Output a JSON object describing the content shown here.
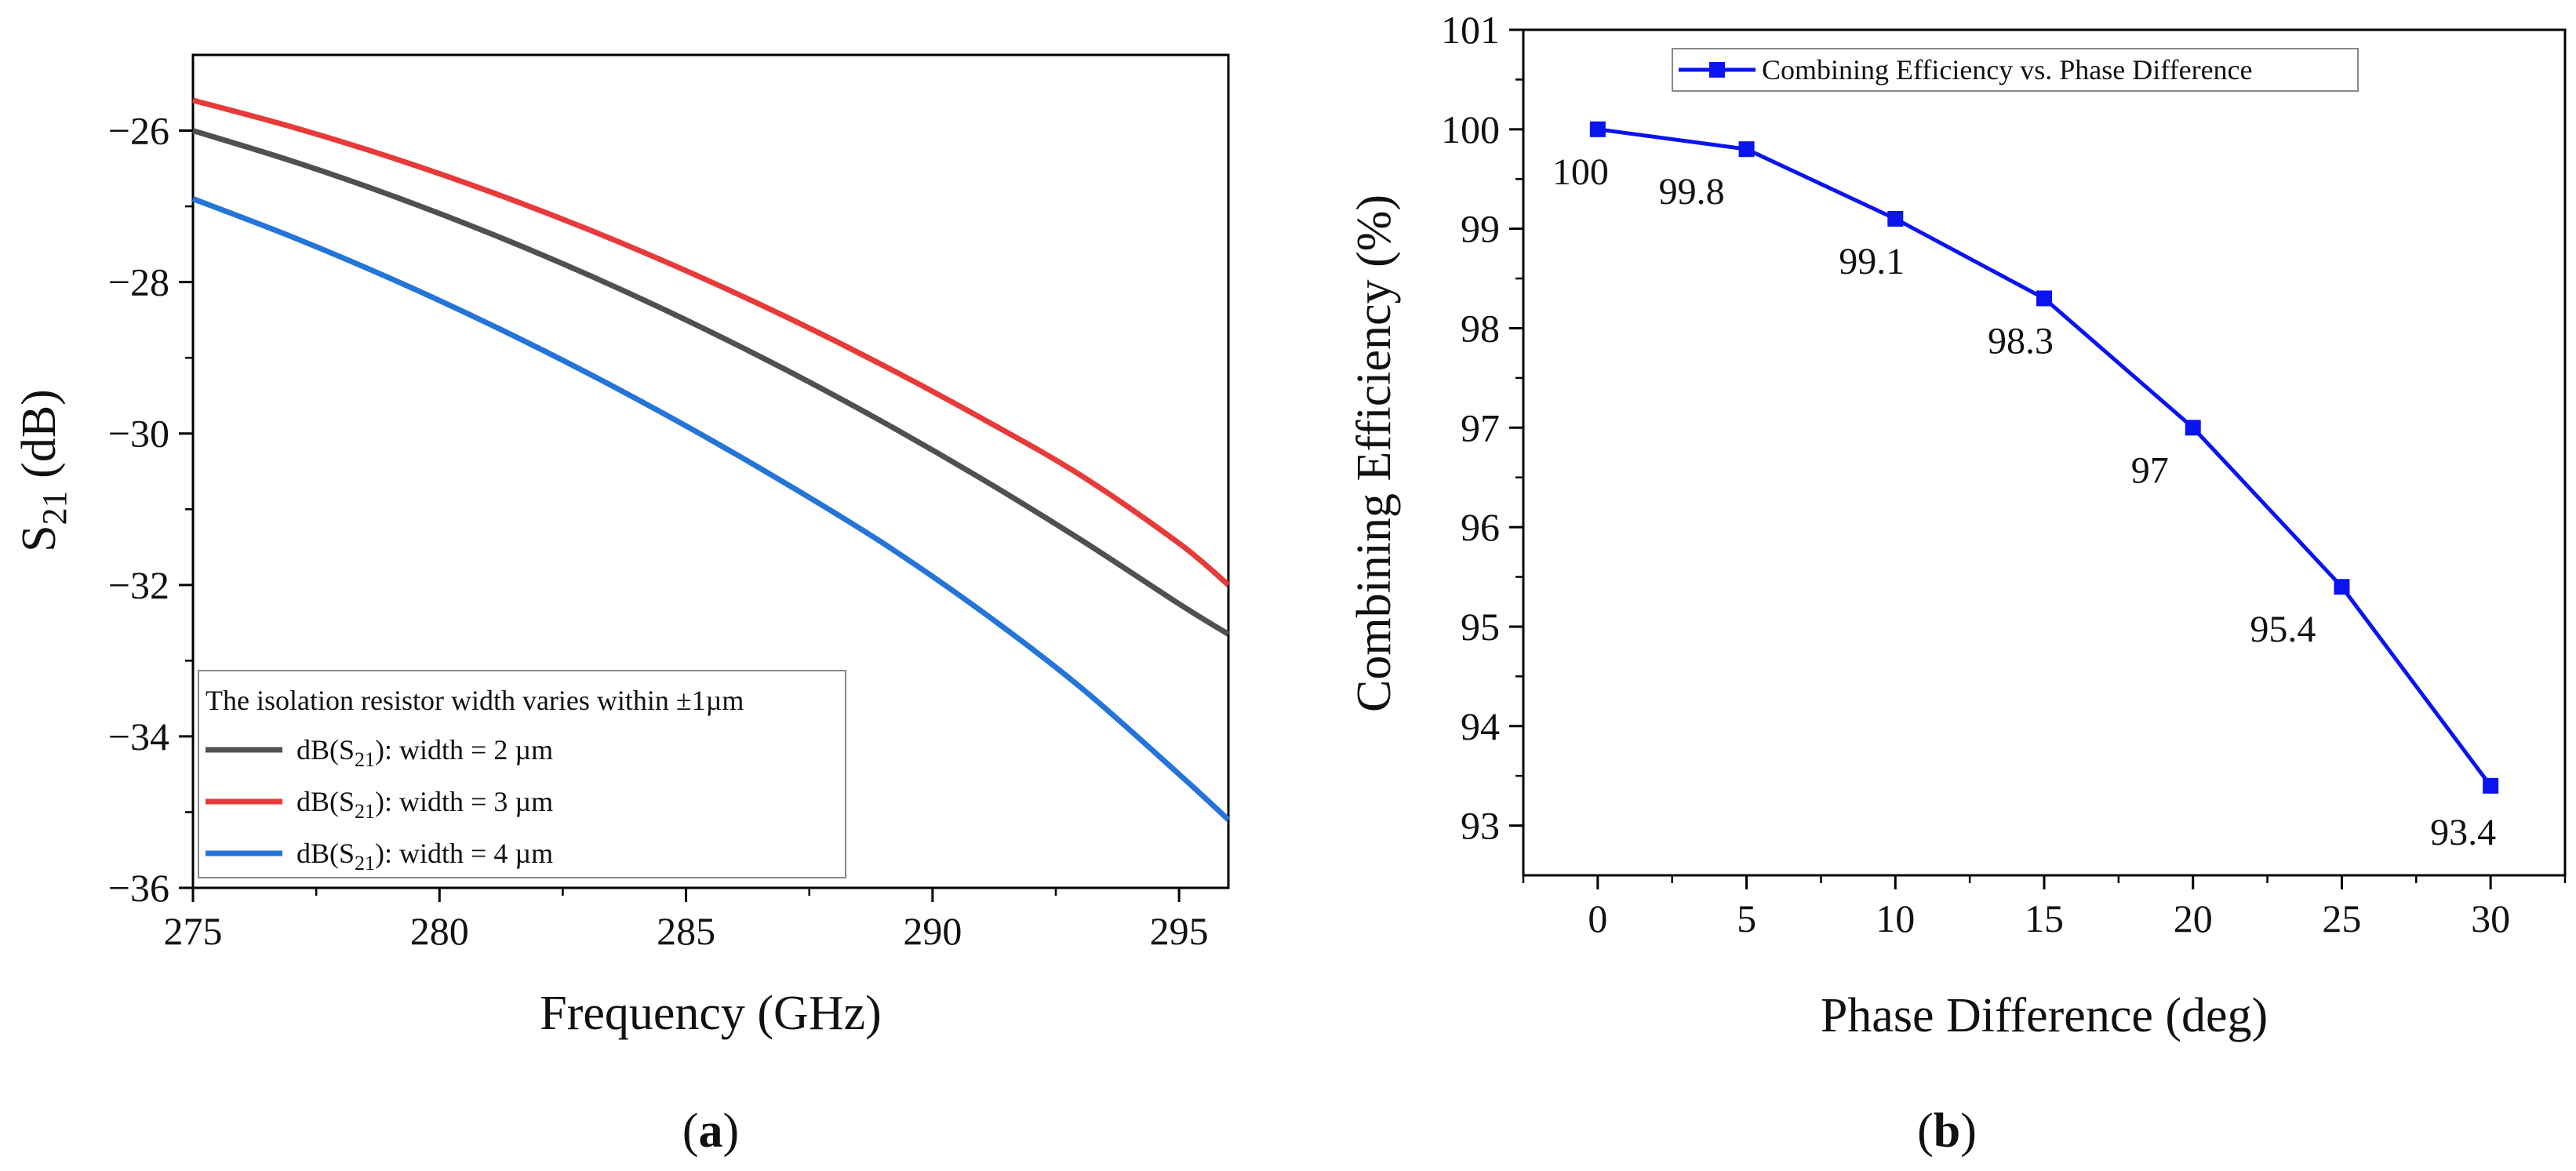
{
  "chart_data": [
    {
      "type": "line",
      "panel": "(a)",
      "caption_paren_open": "(",
      "caption_letter": "a",
      "caption_paren_close": ")",
      "xlabel": "Frequency (GHz)",
      "ylabel_main": "S",
      "ylabel_sub": "21",
      "ylabel_unit": " (dB)",
      "xlim": [
        275,
        296
      ],
      "ylim": [
        -36,
        -25
      ],
      "x_ticks": [
        275,
        280,
        285,
        290,
        295
      ],
      "y_ticks": [
        -26,
        -28,
        -30,
        -32,
        -34,
        -36
      ],
      "y_tick_labels": [
        "−26",
        "−28",
        "−30",
        "−32",
        "−34",
        "−36"
      ],
      "legend": {
        "title": "The isolation resistor width varies within ±1µm",
        "placement": "bottom-left"
      },
      "x": [
        275,
        277,
        279,
        281,
        283,
        285,
        287,
        289,
        291,
        293,
        295,
        296
      ],
      "series": [
        {
          "name_pre": "dB(S",
          "name_sub": "21",
          "name_post": "): width = 2 µm",
          "color": "#505050",
          "values": [
            -26.0,
            -26.4,
            -26.85,
            -27.35,
            -27.9,
            -28.5,
            -29.15,
            -29.85,
            -30.6,
            -31.4,
            -32.25,
            -32.65
          ]
        },
        {
          "name_pre": "dB(S",
          "name_sub": "21",
          "name_post": "): width = 3 µm",
          "color": "#e83a3a",
          "values": [
            -25.6,
            -25.95,
            -26.35,
            -26.8,
            -27.3,
            -27.85,
            -28.45,
            -29.1,
            -29.8,
            -30.55,
            -31.45,
            -32.0
          ]
        },
        {
          "name_pre": "dB(S",
          "name_sub": "21",
          "name_post": "): width = 4 µm",
          "color": "#2575d8",
          "values": [
            -26.9,
            -27.4,
            -27.95,
            -28.55,
            -29.2,
            -29.9,
            -30.65,
            -31.45,
            -32.35,
            -33.35,
            -34.5,
            -35.1
          ]
        }
      ]
    },
    {
      "type": "line",
      "panel": "(b)",
      "caption_paren_open": "(",
      "caption_letter": "b",
      "caption_paren_close": ")",
      "xlabel": "Phase Difference (deg)",
      "ylabel": "Combining Efficiency (%)",
      "xlim": [
        -2.5,
        32.5
      ],
      "ylim": [
        92.5,
        101
      ],
      "x_ticks": [
        0,
        5,
        10,
        15,
        20,
        25,
        30
      ],
      "y_ticks": [
        93,
        94,
        95,
        96,
        97,
        98,
        99,
        100,
        101
      ],
      "legend": {
        "label": "Combining Efficiency vs. Phase Difference",
        "placement": "top-center"
      },
      "series": [
        {
          "name": "Combining Efficiency vs. Phase Difference",
          "color": "#0a14f0",
          "x": [
            0,
            5,
            10,
            15,
            20,
            25,
            30
          ],
          "values": [
            100,
            99.8,
            99.1,
            98.3,
            97,
            95.4,
            93.4
          ],
          "data_labels": [
            "100",
            "99.8",
            "99.1",
            "98.3",
            "97",
            "95.4",
            "93.4"
          ]
        }
      ]
    }
  ]
}
